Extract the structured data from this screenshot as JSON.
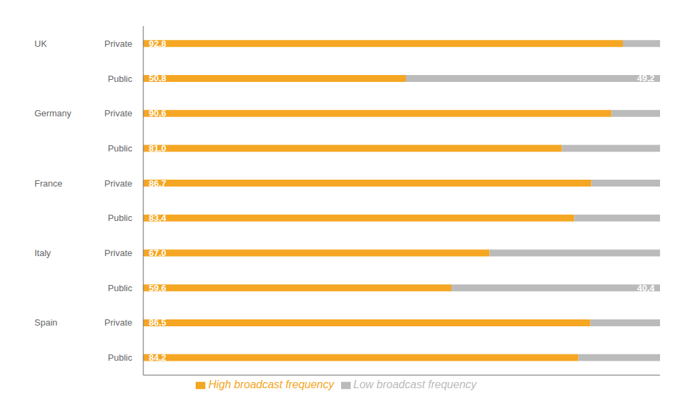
{
  "chart_data": {
    "type": "bar",
    "orientation": "horizontal",
    "stacked": true,
    "data_labels": true,
    "legend": "bottom",
    "grid": false,
    "tick_labels": "y",
    "categories": [
      "Private",
      "Public",
      "Private",
      "Public",
      "Private",
      "Public",
      "Private",
      "Public",
      "Private",
      "Public"
    ],
    "groups": [
      "UK",
      null,
      "Germany",
      null,
      "France",
      null,
      "Italy",
      null,
      "Spain",
      null
    ],
    "xlim": [
      0,
      100
    ],
    "series": [
      {
        "name": "High broadcast frequency",
        "color": "#F5A623",
        "values": [
          92.8,
          50.8,
          90.6,
          81.0,
          86.7,
          83.4,
          67.0,
          59.6,
          86.5,
          84.2
        ],
        "value_labels": [
          "92,8",
          "50,8",
          "90,6",
          "81,0",
          "86,7",
          "83,4",
          "67,0",
          "59,6",
          "86,5",
          "84,2"
        ]
      },
      {
        "name": "Low broadcast frequency",
        "color": "#BBBBBB",
        "values": [
          7.2,
          49.2,
          9.4,
          19.0,
          13.3,
          16.6,
          33.0,
          40.4,
          13.5,
          15.8
        ],
        "value_labels": [
          null,
          "49,2",
          null,
          null,
          null,
          null,
          null,
          "40,4",
          null,
          null
        ]
      }
    ]
  }
}
